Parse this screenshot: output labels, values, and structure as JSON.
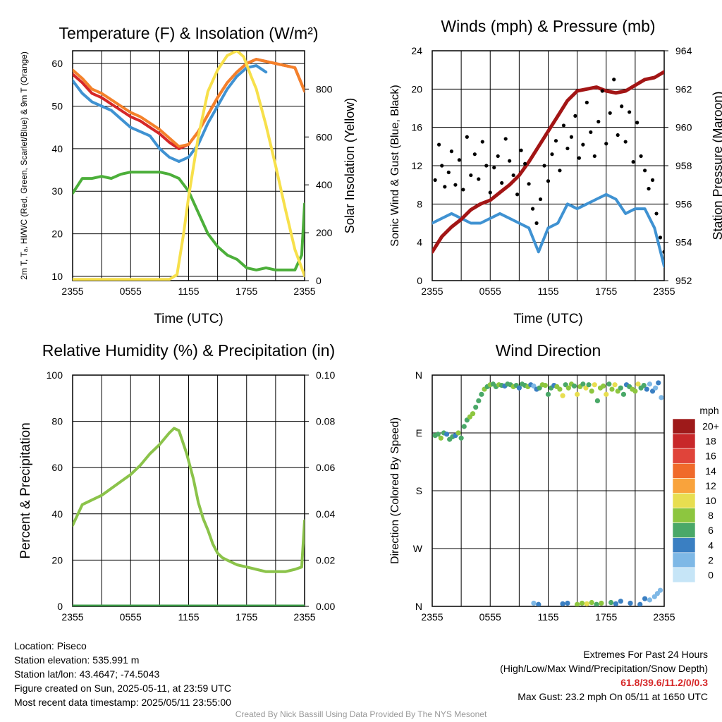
{
  "chart_data": [
    {
      "type": "line",
      "title": "Temperature (F) & Insolation (W/m²)",
      "xlabel": "Time (UTC)",
      "ylabel": "2m T, Tₐ, HI/WC (Red, Green, Scarlet/Blue) & 9m T (Orange)",
      "y2label": "Solar Insolation (Yellow)",
      "x_ticks": [
        "2355",
        "0555",
        "1155",
        "1755",
        "2355"
      ],
      "y_ticks": [
        10,
        20,
        30,
        40,
        50,
        60
      ],
      "y2_ticks": [
        0,
        200,
        400,
        600,
        800
      ],
      "ylim": [
        9,
        63
      ],
      "y2lim": [
        0,
        960
      ],
      "xlim": [
        0,
        24
      ],
      "grid": true,
      "series": [
        {
          "name": "2m T",
          "color": "#d62728",
          "axis": "left",
          "x": [
            0,
            1,
            2,
            3,
            4,
            5,
            6,
            7,
            8,
            9,
            10,
            11,
            12,
            13,
            14,
            15,
            16,
            17,
            18,
            19,
            20,
            21,
            22,
            23,
            24
          ],
          "y": [
            57.5,
            55.5,
            53,
            52,
            50.5,
            49,
            47.5,
            46.5,
            45,
            43.5,
            41.5,
            40,
            41,
            44,
            48,
            52,
            55.5,
            58,
            60,
            61,
            60.5,
            60,
            59.5,
            59,
            53.5
          ]
        },
        {
          "name": "9m T",
          "color": "#f4812a",
          "axis": "left",
          "x": [
            0,
            1,
            2,
            3,
            4,
            5,
            6,
            7,
            8,
            9,
            10,
            11,
            12,
            13,
            14,
            15,
            16,
            17,
            18,
            19,
            20,
            21,
            22,
            23,
            24
          ],
          "y": [
            58.5,
            56.5,
            54,
            53,
            51.5,
            50,
            48.5,
            47.5,
            46,
            44.5,
            42.5,
            40.5,
            41,
            44,
            48,
            52,
            55.5,
            58,
            60,
            61,
            60.5,
            60,
            59.5,
            59,
            53.5
          ]
        },
        {
          "name": "HI/WC",
          "color": "#3f92d2",
          "axis": "left",
          "x": [
            0,
            1,
            2,
            3,
            4,
            5,
            6,
            7,
            8,
            9,
            10,
            11,
            12,
            13,
            14,
            15,
            16,
            17,
            18,
            19,
            20
          ],
          "y": [
            56,
            53,
            51,
            50,
            49,
            47,
            45,
            44,
            43,
            40,
            38,
            37,
            38,
            41,
            46,
            50,
            54,
            57,
            59,
            59.5,
            58
          ]
        },
        {
          "name": "Tₐ",
          "color": "#4caf3a",
          "axis": "left",
          "x": [
            0,
            1,
            2,
            3,
            4,
            5,
            6,
            7,
            8,
            9,
            10,
            11,
            12,
            13,
            14,
            15,
            16,
            17,
            18,
            19,
            20,
            21,
            22,
            23,
            23.7,
            24
          ],
          "y": [
            29.5,
            33,
            33,
            33.5,
            33,
            34,
            34.5,
            34.5,
            34.5,
            34.5,
            34,
            33,
            30,
            25,
            20,
            17,
            15,
            14,
            12,
            11.5,
            12,
            11.5,
            11.5,
            11.5,
            15,
            27
          ]
        },
        {
          "name": "Solar Insolation",
          "color": "#f7e04b",
          "axis": "right",
          "x": [
            0,
            1,
            2,
            3,
            4,
            5,
            6,
            7,
            8,
            9,
            10,
            10.8,
            11.5,
            12,
            13,
            14,
            15,
            16,
            17,
            17.7,
            18.5,
            19,
            20,
            21,
            22,
            23,
            24
          ],
          "y": [
            5,
            5,
            5,
            5,
            5,
            5,
            5,
            5,
            5,
            5,
            5,
            25,
            200,
            350,
            600,
            790,
            880,
            940,
            960,
            935,
            850,
            800,
            650,
            480,
            300,
            130,
            20
          ]
        }
      ]
    },
    {
      "type": "line",
      "title": "Winds (mph) & Pressure (mb)",
      "xlabel": "Time (UTC)",
      "ylabel": "Sonic Wind & Gust (Blue, Black)",
      "y2label": "Station Pressure (Maroon)",
      "x_ticks": [
        "2355",
        "0555",
        "1155",
        "1755",
        "2355"
      ],
      "y_ticks": [
        0,
        4,
        8,
        12,
        16,
        20,
        24
      ],
      "y2_ticks": [
        952,
        954,
        956,
        958,
        960,
        962,
        964
      ],
      "ylim": [
        0,
        24
      ],
      "y2lim": [
        952,
        964
      ],
      "xlim": [
        0,
        24
      ],
      "grid": true,
      "series": [
        {
          "name": "Sonic Wind",
          "color": "#3f92d2",
          "axis": "left",
          "x": [
            0,
            1,
            2,
            3,
            4,
            5,
            6,
            7,
            8,
            9,
            10,
            11,
            12,
            13,
            14,
            15,
            16,
            17,
            18,
            19,
            20,
            21,
            22,
            23,
            24
          ],
          "y": [
            6,
            6.5,
            7,
            6.5,
            6,
            6,
            6.5,
            7,
            6.5,
            6,
            5.5,
            3,
            5.5,
            6,
            8,
            7.5,
            8,
            8.5,
            9,
            8.5,
            7,
            7.5,
            7.5,
            5.5,
            1.5
          ]
        },
        {
          "name": "Pressure",
          "color": "#a31515",
          "axis": "right",
          "x": [
            0,
            1,
            2,
            3,
            4,
            5,
            6,
            7,
            8,
            9,
            10,
            11,
            12,
            13,
            14,
            15,
            16,
            17,
            18,
            19,
            20,
            21,
            22,
            23,
            24
          ],
          "y": [
            953.5,
            954.3,
            954.8,
            955.2,
            955.7,
            956,
            956.2,
            956.6,
            957,
            957.5,
            958.2,
            959,
            959.8,
            960.6,
            961.4,
            961.9,
            962,
            962.1,
            961.9,
            961.8,
            961.9,
            962.2,
            962.5,
            962.6,
            962.9
          ]
        },
        {
          "name": "Gust",
          "color": "#000000",
          "axis": "left",
          "mode": "markers",
          "x": [
            0.3,
            0.7,
            1,
            1.3,
            1.7,
            2,
            2.4,
            2.8,
            3.2,
            3.6,
            4,
            4.4,
            4.8,
            5.2,
            5.6,
            6,
            6.4,
            6.8,
            7.2,
            7.6,
            8,
            8.4,
            8.8,
            9.2,
            9.6,
            10,
            10.4,
            10.8,
            11.2,
            11.6,
            12,
            12.4,
            12.8,
            13.2,
            13.6,
            14,
            14.4,
            14.8,
            15.2,
            15.6,
            16,
            16.4,
            16.8,
            17.2,
            17.6,
            18,
            18.4,
            18.8,
            19.2,
            19.6,
            20,
            20.4,
            20.8,
            21.2,
            21.6,
            22,
            22.4,
            22.8,
            23.2,
            23.6,
            24
          ],
          "y": [
            10.5,
            14.2,
            12,
            9.8,
            11.3,
            13.5,
            10,
            12.6,
            9.5,
            15,
            11,
            13.2,
            10.6,
            14.5,
            12,
            9.2,
            11.8,
            13,
            10.2,
            14.8,
            12.5,
            11,
            9,
            13.6,
            12.2,
            10.1,
            7.5,
            6,
            8.5,
            12,
            10.4,
            13.2,
            14.6,
            11.5,
            16.2,
            13.8,
            15,
            17.2,
            12.8,
            14.2,
            18.6,
            15.5,
            13,
            16.6,
            19.8,
            14.3,
            17.5,
            21,
            15.2,
            18.2,
            14.5,
            17.6,
            12.4,
            16.5,
            13,
            11.5,
            9.6,
            10.5,
            7,
            4.5,
            3
          ]
        }
      ]
    },
    {
      "type": "line",
      "title": "Relative Humidity (%) & Precipitation (in)",
      "xlabel": "",
      "ylabel": "Percent & Precipitation",
      "x_ticks": [
        "2355",
        "0555",
        "1155",
        "1755",
        "2355"
      ],
      "y_ticks": [
        0,
        20,
        40,
        60,
        80,
        100
      ],
      "y2_ticks": [
        "0.00",
        "0.02",
        "0.04",
        "0.06",
        "0.08",
        "0.10"
      ],
      "ylim": [
        0,
        100
      ],
      "y2lim": [
        0,
        0.1
      ],
      "xlim": [
        0,
        24
      ],
      "grid": true,
      "series": [
        {
          "name": "Relative Humidity",
          "color": "#8bc34a",
          "axis": "left",
          "x": [
            0,
            1,
            2,
            3,
            4,
            5,
            6,
            7,
            8,
            9,
            10,
            10.5,
            11,
            11.8,
            12.5,
            13,
            13.5,
            14,
            14.5,
            15,
            15.5,
            16,
            17,
            18,
            19,
            20,
            21,
            22,
            23,
            23.7,
            24
          ],
          "y": [
            35,
            44,
            46,
            48,
            51,
            54,
            57,
            61,
            66,
            70,
            75,
            77,
            76,
            66,
            55,
            45,
            38,
            33,
            27,
            23,
            21,
            20,
            18,
            17,
            16,
            15,
            15,
            15,
            16,
            17,
            37
          ]
        },
        {
          "name": "Precipitation",
          "color": "#3a9a45",
          "axis": "right",
          "x": [
            0,
            24
          ],
          "y": [
            0,
            0
          ]
        }
      ]
    },
    {
      "type": "scatter",
      "title": "Wind Direction",
      "xlabel": "",
      "ylabel": "Direction (Colored By Speed)",
      "x_ticks": [
        "2355",
        "0555",
        "1155",
        "1755",
        "2355"
      ],
      "y_ticks": [
        "N",
        "W",
        "S",
        "E",
        "N"
      ],
      "ylim": [
        0,
        360
      ],
      "xlim": [
        0,
        24
      ],
      "grid": true,
      "legend": {
        "title": "mph",
        "labels": [
          "20+",
          "18",
          "16",
          "14",
          "12",
          "10",
          "8",
          "6",
          "4",
          "2",
          "0"
        ],
        "colors": [
          "#9e1a1a",
          "#c8282a",
          "#e0443a",
          "#f06a2a",
          "#f9a33c",
          "#e8de50",
          "#8dc63f",
          "#4aa868",
          "#3a7fc2",
          "#7eb8e6",
          "#c6e5f7"
        ],
        "placement": "right"
      },
      "points": {
        "x": [
          0.3,
          0.6,
          0.9,
          1.2,
          1.5,
          1.8,
          2.1,
          2.4,
          2.7,
          3.0,
          3.3,
          3.6,
          3.9,
          4.2,
          4.5,
          4.8,
          5.1,
          5.4,
          5.7,
          6.0,
          6.3,
          6.6,
          6.9,
          7.2,
          7.5,
          7.8,
          8.1,
          8.4,
          8.7,
          9.0,
          9.3,
          9.6,
          9.9,
          10.2,
          10.5,
          10.8,
          11.1,
          11.4,
          11.7,
          12.0,
          12.3,
          12.6,
          12.9,
          13.2,
          13.5,
          13.8,
          14.1,
          14.4,
          14.7,
          15.0,
          15.3,
          15.6,
          15.9,
          16.2,
          16.5,
          16.8,
          17.1,
          17.4,
          17.7,
          18.0,
          18.3,
          18.6,
          18.9,
          19.2,
          19.5,
          19.8,
          20.1,
          20.4,
          20.7,
          21.0,
          21.3,
          21.6,
          21.9,
          22.2,
          22.5,
          22.8,
          23.1,
          23.4,
          23.7,
          10.5,
          11,
          13.5,
          14,
          15,
          15.5,
          16,
          16.5,
          17,
          17.5,
          18.5,
          19,
          19.5,
          20.5,
          21.5,
          22,
          22.5,
          23,
          23.3,
          23.6
        ],
        "y": [
          266,
          268,
          262,
          270,
          268,
          260,
          264,
          266,
          270,
          262,
          280,
          290,
          295,
          300,
          310,
          320,
          330,
          338,
          342,
          345,
          346,
          342,
          345,
          344,
          343,
          346,
          345,
          342,
          344,
          340,
          346,
          344,
          342,
          345,
          343,
          338,
          340,
          345,
          344,
          330,
          340,
          344,
          342,
          338,
          328,
          345,
          340,
          346,
          343,
          330,
          342,
          346,
          340,
          345,
          335,
          345,
          320,
          340,
          343,
          330,
          346,
          338,
          345,
          335,
          340,
          330,
          345,
          342,
          338,
          335,
          346,
          340,
          344,
          338,
          346,
          335,
          340,
          348,
          325,
          5,
          3,
          4,
          5,
          3,
          5,
          4,
          6,
          3,
          5,
          6,
          4,
          8,
          5,
          3,
          12,
          10,
          15,
          20,
          25
        ],
        "speed": [
          5,
          6,
          7,
          5,
          4,
          6,
          5,
          3,
          7,
          5,
          6,
          6,
          7,
          7,
          6,
          5,
          6,
          7,
          6,
          7,
          6,
          5,
          7,
          6,
          4,
          6,
          5,
          7,
          6,
          4,
          5,
          6,
          7,
          3,
          2,
          4,
          6,
          7,
          8,
          5,
          6,
          4,
          7,
          8,
          9,
          6,
          7,
          8,
          5,
          10,
          7,
          6,
          9,
          6,
          8,
          10,
          5,
          7,
          8,
          9,
          6,
          7,
          10,
          8,
          6,
          5,
          4,
          6,
          7,
          8,
          9,
          6,
          5,
          3,
          2,
          4,
          1,
          3,
          2,
          2,
          3,
          3,
          4,
          7,
          8,
          9,
          8,
          6,
          7,
          5,
          4,
          4,
          3,
          4,
          3,
          2,
          2,
          1,
          1
        ]
      }
    }
  ],
  "footer": {
    "location": "Location: Piseco",
    "elevation": "Station elevation: 535.991 m",
    "latlon": "Station lat/lon: 43.4647; -74.5043",
    "created": "Figure created on Sun, 2025-05-11, at 23:59 UTC",
    "recent": "Most recent data timestamp: 2025/05/11 23:55:00",
    "extremes_title": "Extremes For Past 24 Hours",
    "extremes_legend": "(High/Low/Max Wind/Precipitation/Snow Depth)",
    "extremes_values": "61.8/39.6/11.2/0/0.3",
    "max_gust": "Max Gust: 23.2 mph On 05/11 at 1650 UTC",
    "credit": "Created By Nick Bassill Using Data Provided By The NYS Mesonet"
  }
}
